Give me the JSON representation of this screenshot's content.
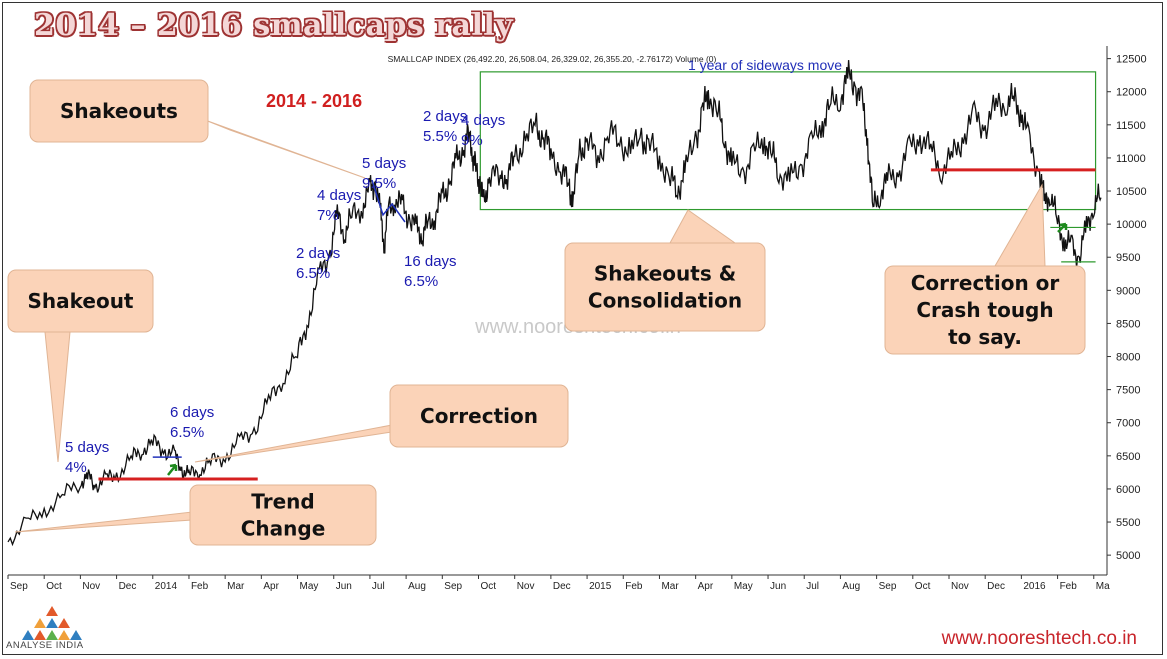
{
  "title": "2014 – 2016 smallcaps rally",
  "chart_data": {
    "type": "line",
    "subtitle": "SMALLCAP INDEX (26,492.20, 26,508.04, 26,329.02, 26,355.20, -2.76172) Volume (0)",
    "ylim": [
      4700,
      12600
    ],
    "y_ticks": [
      5000,
      5500,
      6000,
      6500,
      7000,
      7500,
      8000,
      8500,
      9000,
      9500,
      10000,
      10500,
      11000,
      11500,
      12000,
      12500
    ],
    "x_ticks": [
      {
        "label": "Sep",
        "t": 0
      },
      {
        "label": "Oct",
        "t": 1
      },
      {
        "label": "Nov",
        "t": 2
      },
      {
        "label": "Dec",
        "t": 3
      },
      {
        "label": "2014",
        "t": 4
      },
      {
        "label": "Feb",
        "t": 5
      },
      {
        "label": "Mar",
        "t": 6
      },
      {
        "label": "Apr",
        "t": 7
      },
      {
        "label": "May",
        "t": 8
      },
      {
        "label": "Jun",
        "t": 9
      },
      {
        "label": "Jul",
        "t": 10
      },
      {
        "label": "Aug",
        "t": 11
      },
      {
        "label": "Sep",
        "t": 12
      },
      {
        "label": "Oct",
        "t": 13
      },
      {
        "label": "Nov",
        "t": 14
      },
      {
        "label": "Dec",
        "t": 15
      },
      {
        "label": "2015",
        "t": 16
      },
      {
        "label": "Feb",
        "t": 17
      },
      {
        "label": "Mar",
        "t": 18
      },
      {
        "label": "Apr",
        "t": 19
      },
      {
        "label": "May",
        "t": 20
      },
      {
        "label": "Jun",
        "t": 21
      },
      {
        "label": "Jul",
        "t": 22
      },
      {
        "label": "Aug",
        "t": 23
      },
      {
        "label": "Sep",
        "t": 24
      },
      {
        "label": "Oct",
        "t": 25
      },
      {
        "label": "Nov",
        "t": 26
      },
      {
        "label": "Dec",
        "t": 27
      },
      {
        "label": "2016",
        "t": 28
      },
      {
        "label": "Feb",
        "t": 29
      },
      {
        "label": "Ma",
        "t": 30
      }
    ],
    "x_range": [
      0,
      30.2
    ],
    "series": [
      {
        "points": [
          [
            0,
            5200
          ],
          [
            0.5,
            5500
          ],
          [
            1,
            5650
          ],
          [
            1.5,
            5900
          ],
          [
            2,
            6100
          ],
          [
            2.2,
            6200
          ],
          [
            2.4,
            6050
          ],
          [
            2.7,
            6150
          ],
          [
            3,
            6200
          ],
          [
            3.4,
            6450
          ],
          [
            3.7,
            6600
          ],
          [
            4,
            6700
          ],
          [
            4.3,
            6600
          ],
          [
            4.6,
            6500
          ],
          [
            4.8,
            6300
          ],
          [
            5,
            6200
          ],
          [
            5.3,
            6300
          ],
          [
            5.6,
            6400
          ],
          [
            6,
            6500
          ],
          [
            6.4,
            6700
          ],
          [
            6.8,
            6900
          ],
          [
            7.2,
            7300
          ],
          [
            7.6,
            7700
          ],
          [
            8,
            8000
          ],
          [
            8.3,
            8600
          ],
          [
            8.6,
            9200
          ],
          [
            8.9,
            9600
          ],
          [
            9.1,
            10100
          ],
          [
            9.3,
            9900
          ],
          [
            9.5,
            10100
          ],
          [
            9.8,
            10300
          ],
          [
            10,
            10500
          ],
          [
            10.15,
            10650
          ],
          [
            10.3,
            10100
          ],
          [
            10.4,
            9700
          ],
          [
            10.5,
            10200
          ],
          [
            10.7,
            10400
          ],
          [
            10.9,
            10250
          ],
          [
            11.1,
            10100
          ],
          [
            11.3,
            9900
          ],
          [
            11.45,
            9850
          ],
          [
            11.6,
            10000
          ],
          [
            11.8,
            10150
          ],
          [
            12,
            10400
          ],
          [
            12.2,
            10650
          ],
          [
            12.4,
            10950
          ],
          [
            12.6,
            11200
          ],
          [
            12.75,
            11350
          ],
          [
            12.85,
            11050
          ],
          [
            12.95,
            10750
          ],
          [
            13.05,
            10600
          ],
          [
            13.15,
            10300
          ],
          [
            13.3,
            10750
          ],
          [
            13.6,
            10700
          ],
          [
            13.8,
            10750
          ],
          [
            14,
            11000
          ],
          [
            14.3,
            11300
          ],
          [
            14.6,
            11450
          ],
          [
            14.8,
            11300
          ],
          [
            15,
            11100
          ],
          [
            15.3,
            10800
          ],
          [
            15.5,
            10600
          ],
          [
            15.6,
            10300
          ],
          [
            15.8,
            11100
          ],
          [
            16,
            11250
          ],
          [
            16.3,
            11000
          ],
          [
            16.6,
            11400
          ],
          [
            16.9,
            11250
          ],
          [
            17.2,
            11100
          ],
          [
            17.5,
            11300
          ],
          [
            17.7,
            11200
          ],
          [
            18,
            11000
          ],
          [
            18.3,
            10700
          ],
          [
            18.5,
            10500
          ],
          [
            18.7,
            10800
          ],
          [
            19,
            11300
          ],
          [
            19.2,
            11700
          ],
          [
            19.35,
            12000
          ],
          [
            19.6,
            11700
          ],
          [
            19.8,
            11300
          ],
          [
            20,
            10900
          ],
          [
            20.3,
            10800
          ],
          [
            20.6,
            11050
          ],
          [
            20.9,
            11300
          ],
          [
            21.1,
            11050
          ],
          [
            21.3,
            10800
          ],
          [
            21.6,
            10650
          ],
          [
            21.9,
            10900
          ],
          [
            22.2,
            11200
          ],
          [
            22.5,
            11550
          ],
          [
            22.7,
            11750
          ],
          [
            23,
            11950
          ],
          [
            23.2,
            12200
          ],
          [
            23.4,
            12150
          ],
          [
            23.6,
            11800
          ],
          [
            23.75,
            11300
          ],
          [
            23.9,
            10200
          ],
          [
            24.1,
            10500
          ],
          [
            24.3,
            10650
          ],
          [
            24.6,
            10800
          ],
          [
            24.9,
            11100
          ],
          [
            25.2,
            11350
          ],
          [
            25.5,
            11100
          ],
          [
            25.8,
            10850
          ],
          [
            26.1,
            11000
          ],
          [
            26.4,
            11350
          ],
          [
            26.7,
            11600
          ],
          [
            27,
            11500
          ],
          [
            27.3,
            11750
          ],
          [
            27.6,
            11900
          ],
          [
            27.8,
            11850
          ],
          [
            28,
            11700
          ],
          [
            28.2,
            11250
          ],
          [
            28.5,
            10800
          ],
          [
            28.65,
            10300
          ],
          [
            28.8,
            10500
          ],
          [
            29,
            10000
          ],
          [
            29.2,
            9750
          ],
          [
            29.4,
            9650
          ],
          [
            29.6,
            9500
          ],
          [
            29.8,
            9950
          ],
          [
            30,
            10300
          ],
          [
            30.2,
            10400
          ]
        ]
      }
    ],
    "annotations": [
      {
        "text": "5 days",
        "sub": "4%"
      },
      {
        "text": "6 days",
        "sub": "6.5%"
      },
      {
        "text": "2 days",
        "sub": "6.5%"
      },
      {
        "text": "4 days",
        "sub": "7%"
      },
      {
        "text": "5 days",
        "sub": "9.5%"
      },
      {
        "text": "16 days",
        "sub": "6.5%"
      },
      {
        "text": "2 days",
        "sub": "5.5%"
      },
      {
        "text": "4 days",
        "sub": "9%"
      }
    ],
    "box_label": "1 year of sideways move",
    "period_label": "2014 - 2016",
    "watermark": "www.nooreshtech.co.in"
  },
  "callouts": [
    {
      "lines": [
        "Shakeouts"
      ]
    },
    {
      "lines": [
        "Shakeout"
      ]
    },
    {
      "lines": [
        "Correction"
      ]
    },
    {
      "lines": [
        "Trend",
        "Change"
      ]
    },
    {
      "lines": [
        "Shakeouts &",
        "Consolidation"
      ]
    },
    {
      "lines": [
        "Correction or",
        "Crash tough",
        "to say."
      ]
    }
  ],
  "footer": {
    "link": "www.nooreshtech.co.in",
    "logo_text": "ANALYSE INDIA"
  },
  "colors": {
    "price": "#111111",
    "annotation": "#1a1ab0",
    "period": "#d01f1f",
    "support": "#d62020",
    "box": "#2e9a2e",
    "callout_fill": "#fbd3b8",
    "callout_stroke": "#e0b494",
    "arrow": "#1e8a1e"
  }
}
